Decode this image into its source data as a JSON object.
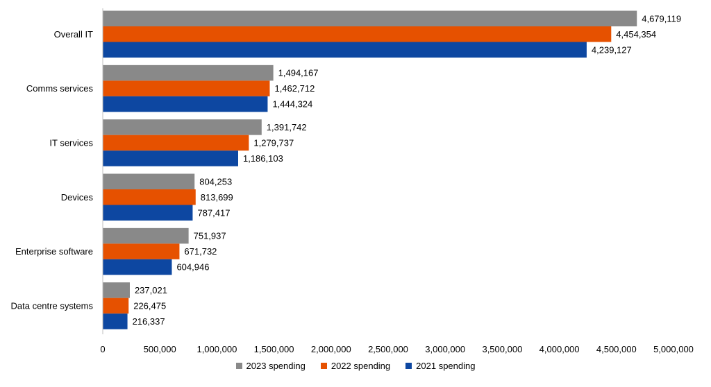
{
  "chart_data": {
    "type": "bar",
    "orientation": "horizontal",
    "categories": [
      "Overall IT",
      "Comms services",
      "IT services",
      "Devices",
      "Enterprise software",
      "Data centre systems"
    ],
    "series": [
      {
        "name": "2023 spending",
        "color": "#898989",
        "values": [
          4679119,
          1494167,
          1391742,
          804253,
          751937,
          237021
        ]
      },
      {
        "name": "2022 spending",
        "color": "#E65100",
        "values": [
          4454354,
          1462712,
          1279737,
          813699,
          671732,
          226475
        ]
      },
      {
        "name": "2021 spending",
        "color": "#0D47A1",
        "values": [
          4239127,
          1444324,
          1186103,
          787417,
          604946,
          216337
        ]
      }
    ],
    "data_labels": [
      [
        "4,679,119",
        "4,454,354",
        "4,239,127"
      ],
      [
        "1,494,167",
        "1,462,712",
        "1,444,324"
      ],
      [
        "1,391,742",
        "1,279,737",
        "1,186,103"
      ],
      [
        "804,253",
        "813,699",
        "787,417"
      ],
      [
        "751,937",
        "671,732",
        "604,946"
      ],
      [
        "237,021",
        "226,475",
        "216,337"
      ]
    ],
    "x_ticks": [
      "0",
      "500,000",
      "1,000,000",
      "1,500,000",
      "2,000,000",
      "2,500,000",
      "3,000,000",
      "3,500,000",
      "4,000,000",
      "4,500,000",
      "5,000,000"
    ],
    "xlim": [
      0,
      5000000
    ],
    "title": "",
    "xlabel": "",
    "ylabel": "",
    "grid": false,
    "legend_position": "bottom"
  }
}
